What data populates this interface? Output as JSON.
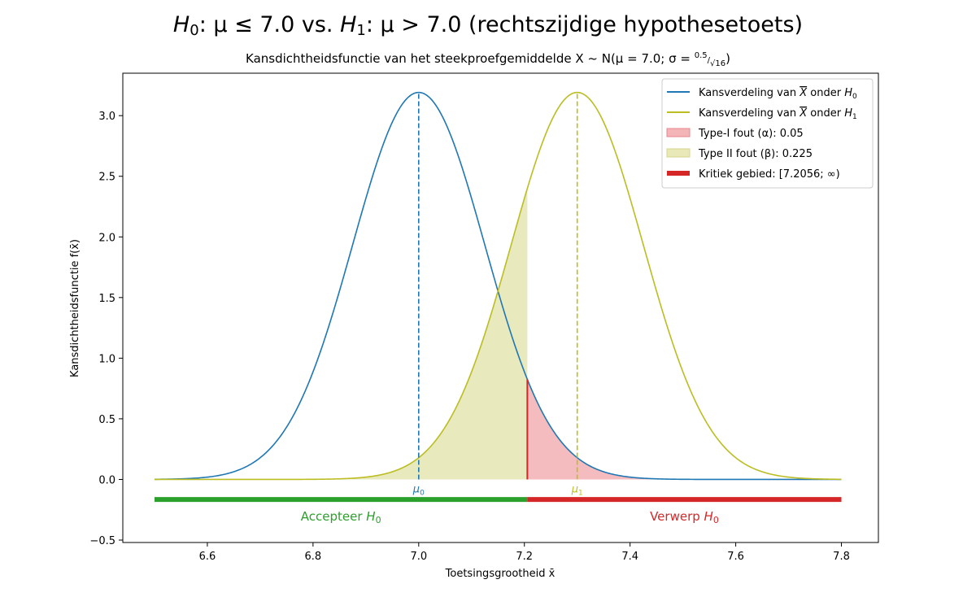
{
  "chart_data": {
    "type": "line",
    "title_parts": [
      "H",
      "0",
      ": μ ≤ 7.0 vs. ",
      "H",
      "1",
      ": μ > 7.0 (rechtszijdige hypothesetoets)"
    ],
    "subtitle_prefix": "Kansdichtheidsfunctie van het steekproefgemiddelde ",
    "subtitle_dist": "X ~ N(μ = 7.0; σ = ",
    "subtitle_frac_num": "0.5",
    "subtitle_frac_den": "√16",
    "subtitle_close": ")",
    "xlabel": "Toetsingsgrootheid x̄",
    "ylabel": "Kansdichtheidsfunctie f(x̄)",
    "xlim": [
      6.44,
      7.87
    ],
    "ylim": [
      -0.52,
      3.35
    ],
    "x_ticks": [
      6.6,
      6.8,
      7.0,
      7.2,
      7.4,
      7.6,
      7.8
    ],
    "x_tick_labels": [
      "6.6",
      "6.8",
      "7.0",
      "7.2",
      "7.4",
      "7.6",
      "7.8"
    ],
    "y_ticks": [
      -0.5,
      0.0,
      0.5,
      1.0,
      1.5,
      2.0,
      2.5,
      3.0
    ],
    "y_tick_labels": [
      "−0.5",
      "0.0",
      "0.5",
      "1.0",
      "1.5",
      "2.0",
      "2.5",
      "3.0"
    ],
    "x_range": [
      6.5,
      7.8
    ],
    "series": [
      {
        "name": "Kansverdeling van X onder H0",
        "mu": 7.0,
        "sigma": 0.125,
        "color": "#1f77b4"
      },
      {
        "name": "Kansverdeling van X onder H1",
        "mu": 7.3,
        "sigma": 0.125,
        "color": "#bcbd22"
      }
    ],
    "critical_value": 7.2056,
    "alpha": 0.05,
    "beta": 0.225,
    "mu_labels": [
      {
        "text": "μ",
        "sub": "0",
        "x": 7.0,
        "color": "#1f77b4"
      },
      {
        "text": "μ",
        "sub": "1",
        "x": 7.3,
        "color": "#bcbd22"
      }
    ],
    "region_bar_y": -0.165,
    "regions": [
      {
        "label": "Accepteer ",
        "sym": "H",
        "sub": "0",
        "from": 6.5,
        "to": 7.2056,
        "color": "#2ca02c"
      },
      {
        "label": "Verwerp ",
        "sym": "H",
        "sub": "0",
        "from": 7.2056,
        "to": 7.8,
        "color": "#d62728"
      }
    ],
    "legend": {
      "placement": "top-right",
      "entries": [
        {
          "kind": "line",
          "color": "#1f77b4",
          "pre": "Kansverdeling van ",
          "mid": "X",
          "post": " onder ",
          "sym": "H",
          "sub": "0"
        },
        {
          "kind": "line",
          "color": "#bcbd22",
          "pre": "Kansverdeling van ",
          "mid": "X",
          "post": " onder ",
          "sym": "H",
          "sub": "1"
        },
        {
          "kind": "patch",
          "color": "#f4b5b9",
          "edge": "#e8878d",
          "text": "Type-I fout (α): 0.05"
        },
        {
          "kind": "patch",
          "color": "#e8e8b8",
          "edge": "#d6d68a",
          "text": "Type II fout (β): 0.225"
        },
        {
          "kind": "thick",
          "color": "#d62728",
          "text": "Kritiek gebied: [7.2056; ∞)"
        }
      ]
    },
    "colors": {
      "h0": "#1f77b4",
      "h1": "#bcbd22",
      "alpha_fill": "#f4bcbf",
      "beta_fill": "#e8e9bd",
      "critical": "#d62728",
      "accept": "#2ca02c"
    }
  }
}
